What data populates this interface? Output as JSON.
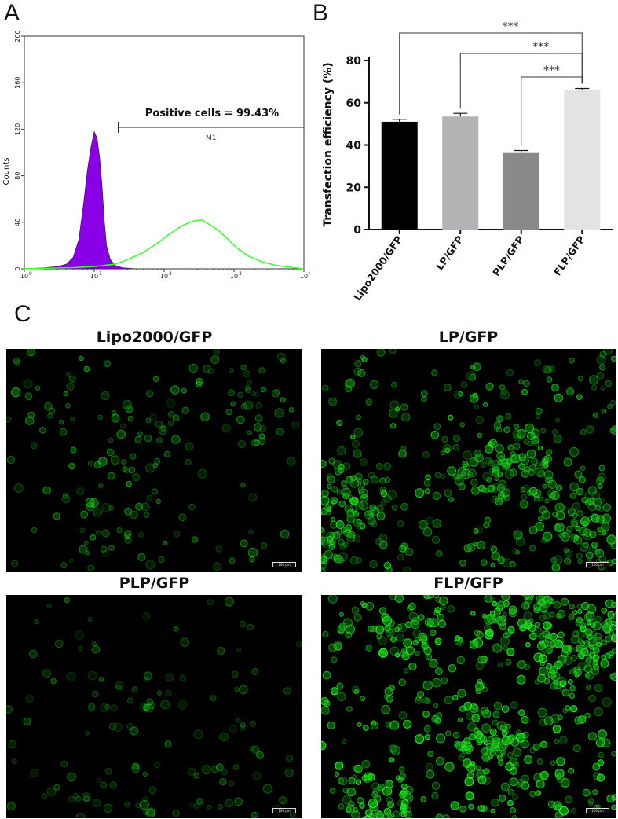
{
  "panel_labels": {
    "a": "A",
    "b": "B",
    "c": "C"
  },
  "chart_data": [
    {
      "type": "histogram",
      "panel": "A",
      "ylabel": "Counts",
      "xscale": "log",
      "xlim": [
        1,
        10000
      ],
      "ylim": [
        0,
        200
      ],
      "y_ticks": [
        "0",
        "40",
        "80",
        "120",
        "160",
        "200"
      ],
      "x_ticks": [
        {
          "base": "10",
          "exp": "0"
        },
        {
          "base": "10",
          "exp": "1"
        },
        {
          "base": "10",
          "exp": "2"
        },
        {
          "base": "10",
          "exp": "3"
        },
        {
          "base": "10",
          "exp": "4"
        }
      ],
      "annotation": "Positive cells = 99.43%",
      "gate_label": "M1",
      "gate_range": [
        22,
        10000
      ],
      "series": [
        {
          "color": "#8a00e6",
          "fill": true,
          "points": [
            [
              1,
              0
            ],
            [
              2,
              1
            ],
            [
              3,
              2
            ],
            [
              4,
              4
            ],
            [
              5,
              10
            ],
            [
              6,
              25
            ],
            [
              7,
              55
            ],
            [
              8,
              85
            ],
            [
              9,
              105
            ],
            [
              10,
              118
            ],
            [
              11,
              112
            ],
            [
              12,
              95
            ],
            [
              13,
              70
            ],
            [
              14,
              40
            ],
            [
              15,
              20
            ],
            [
              17,
              8
            ],
            [
              20,
              3
            ],
            [
              25,
              1
            ],
            [
              40,
              0
            ]
          ]
        },
        {
          "color": "#3dff2e",
          "fill": false,
          "points": [
            [
              1,
              0
            ],
            [
              5,
              1
            ],
            [
              10,
              2
            ],
            [
              20,
              4
            ],
            [
              30,
              8
            ],
            [
              50,
              14
            ],
            [
              80,
              22
            ],
            [
              120,
              30
            ],
            [
              180,
              37
            ],
            [
              260,
              41
            ],
            [
              350,
              42
            ],
            [
              450,
              38
            ],
            [
              600,
              33
            ],
            [
              800,
              26
            ],
            [
              1100,
              18
            ],
            [
              1600,
              11
            ],
            [
              2500,
              6
            ],
            [
              4000,
              3
            ],
            [
              7000,
              1
            ],
            [
              10000,
              0
            ]
          ]
        }
      ]
    },
    {
      "type": "bar",
      "panel": "B",
      "ylabel": "Transfection efficiency (%)",
      "categories": [
        "Lipo2000/GFP",
        "LP/GFP",
        "PLP/GFP",
        "FLP/GFP"
      ],
      "values": [
        51,
        53.5,
        36.2,
        66.2
      ],
      "errors": [
        1.2,
        1.5,
        1.2,
        0.6
      ],
      "colors": [
        "#000000",
        "#b3b3b6",
        "#898989",
        "#e3e3e3"
      ],
      "ylim": [
        0,
        80
      ],
      "y_ticks": [
        "0",
        "20",
        "40",
        "60",
        "80"
      ],
      "significance": [
        {
          "from": 0,
          "to": 3,
          "label": "***"
        },
        {
          "from": 1,
          "to": 3,
          "label": "***"
        },
        {
          "from": 2,
          "to": 3,
          "label": "***"
        }
      ]
    }
  ],
  "micrographs": [
    {
      "title": "Lipo2000/GFP",
      "scale": "100 μm",
      "density": 190,
      "brightness": 0.55,
      "seed": 11
    },
    {
      "title": "LP/GFP",
      "scale": "100 μm",
      "density": 520,
      "brightness": 0.75,
      "seed": 23
    },
    {
      "title": "PLP/GFP",
      "scale": "100 μm",
      "density": 140,
      "brightness": 0.45,
      "seed": 37
    },
    {
      "title": "FLP/GFP",
      "scale": "100 μm",
      "density": 680,
      "brightness": 0.95,
      "seed": 41
    }
  ]
}
